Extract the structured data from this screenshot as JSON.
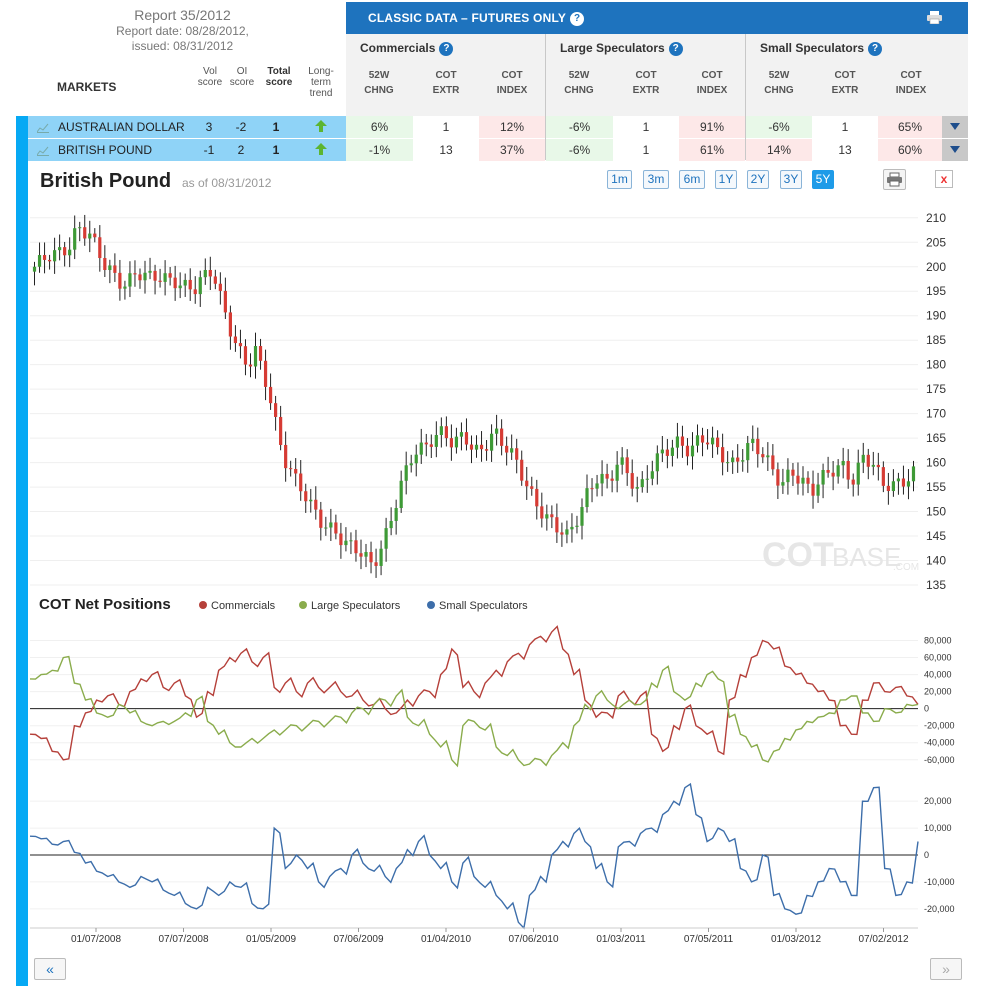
{
  "report": {
    "title": "Report 35/2012",
    "report_date": "Report date: 08/28/2012,",
    "issued": "issued: 08/31/2012"
  },
  "classic_header": {
    "title": "CLASSIC DATA – FUTURES ONLY",
    "print_icon": "print-icon",
    "help_icon": "help-icon"
  },
  "groups": [
    "Commercials",
    "Large Speculators",
    "Small Speculators"
  ],
  "columns": [
    "52W\nCHNG",
    "COT\nEXTR",
    "COT\nINDEX"
  ],
  "left_headers": {
    "markets": "MARKETS",
    "vol": "Vol\nscore",
    "oi": "OI\nscore",
    "total": "Total\nscore",
    "trend": "Long-\nterm\ntrend"
  },
  "rows": [
    {
      "name": "AUSTRALIAN DOLLAR",
      "vol": "3",
      "oi": "-2",
      "total": "1",
      "cells": [
        "6%",
        "1",
        "12%",
        "-6%",
        "1",
        "91%",
        "-6%",
        "1",
        "65%"
      ],
      "cell_colors": [
        "g",
        "w",
        "r",
        "g",
        "w",
        "r",
        "g",
        "w",
        "r"
      ]
    },
    {
      "name": "BRITISH POUND",
      "vol": "-1",
      "oi": "2",
      "total": "1",
      "cells": [
        "-1%",
        "13",
        "37%",
        "-6%",
        "1",
        "61%",
        "14%",
        "13",
        "60%"
      ],
      "cell_colors": [
        "g",
        "w",
        "r",
        "g",
        "w",
        "r",
        "r",
        "w",
        "r"
      ]
    }
  ],
  "chart": {
    "title": "British Pound",
    "as_of": "as of 08/31/2012",
    "ranges": [
      "1m",
      "3m",
      "6m",
      "1Y",
      "2Y",
      "3Y",
      "5Y"
    ],
    "active_range": "5Y",
    "close_label": "x",
    "watermark_cot": "COT",
    "watermark_base": "BASE",
    "watermark_com": ".COM"
  },
  "cot": {
    "title": "COT Net Positions",
    "legend": [
      {
        "label": "Commercials",
        "color": "#b5403a"
      },
      {
        "label": "Large Speculators",
        "color": "#8aac4c"
      },
      {
        "label": "Small Speculators",
        "color": "#3d6eaa"
      }
    ]
  },
  "nav": {
    "prev": "«",
    "next": "»"
  },
  "chart_data": [
    {
      "type": "candlestick",
      "title": "British Pound",
      "ylim": [
        135,
        212
      ],
      "yticks": [
        210,
        205,
        200,
        195,
        190,
        185,
        180,
        175,
        170,
        165,
        160,
        155,
        150,
        145,
        140,
        135
      ],
      "anchors": [
        [
          0,
          200
        ],
        [
          8,
          202
        ],
        [
          14,
          205
        ],
        [
          17,
          209
        ],
        [
          22,
          206
        ],
        [
          27,
          200
        ],
        [
          35,
          197
        ],
        [
          40,
          199
        ],
        [
          45,
          197
        ],
        [
          55,
          198
        ],
        [
          63,
          195
        ],
        [
          70,
          199
        ],
        [
          74,
          193
        ],
        [
          79,
          185
        ],
        [
          84,
          179
        ],
        [
          87,
          182
        ],
        [
          92,
          175
        ],
        [
          98,
          162
        ],
        [
          103,
          156
        ],
        [
          108,
          151
        ],
        [
          113,
          148
        ],
        [
          118,
          147
        ],
        [
          123,
          143
        ],
        [
          128,
          141
        ],
        [
          133,
          139
        ],
        [
          137,
          144
        ],
        [
          141,
          150
        ],
        [
          145,
          156
        ],
        [
          149,
          161
        ],
        [
          153,
          163
        ],
        [
          157,
          166
        ],
        [
          161,
          167
        ],
        [
          165,
          163
        ],
        [
          169,
          165
        ],
        [
          173,
          162
        ],
        [
          177,
          164
        ],
        [
          181,
          167
        ],
        [
          185,
          163
        ],
        [
          189,
          160
        ],
        [
          193,
          156
        ],
        [
          198,
          152
        ],
        [
          202,
          149
        ],
        [
          206,
          146
        ],
        [
          210,
          144
        ],
        [
          214,
          149
        ],
        [
          218,
          155
        ],
        [
          222,
          158
        ],
        [
          226,
          155
        ],
        [
          230,
          160
        ],
        [
          234,
          157
        ],
        [
          238,
          155
        ],
        [
          242,
          159
        ],
        [
          246,
          161
        ],
        [
          250,
          162
        ],
        [
          254,
          164
        ],
        [
          258,
          163
        ],
        [
          262,
          166
        ],
        [
          266,
          164
        ],
        [
          270,
          161
        ],
        [
          274,
          159
        ],
        [
          278,
          162
        ],
        [
          282,
          165
        ],
        [
          286,
          162
        ],
        [
          290,
          158
        ],
        [
          294,
          155
        ],
        [
          298,
          159
        ],
        [
          302,
          157
        ],
        [
          306,
          154
        ],
        [
          310,
          156
        ],
        [
          314,
          158
        ],
        [
          318,
          160
        ],
        [
          322,
          157
        ],
        [
          326,
          161
        ],
        [
          330,
          159
        ],
        [
          334,
          155
        ],
        [
          338,
          156
        ],
        [
          342,
          157
        ],
        [
          346,
          158
        ]
      ]
    },
    {
      "type": "line",
      "title": "COT Net Positions",
      "yticks": [
        80000,
        60000,
        40000,
        20000,
        0,
        -20000,
        -40000,
        -60000
      ],
      "ylim": [
        -72000,
        90000
      ],
      "series": [
        {
          "name": "Commercials",
          "color": "#b5403a",
          "values": [
            -30000,
            -35000,
            -50000,
            -60000,
            -20000,
            -5000,
            10000,
            15000,
            5000,
            20000,
            35000,
            40000,
            25000,
            30000,
            15000,
            -10000,
            20000,
            45000,
            60000,
            65000,
            55000,
            60000,
            25000,
            30000,
            20000,
            30000,
            25000,
            25000,
            20000,
            15000,
            10000,
            5000,
            0,
            -5000,
            10000,
            15000,
            20000,
            40000,
            70000,
            25000,
            20000,
            30000,
            45000,
            55000,
            65000,
            75000,
            85000,
            90000,
            70000,
            40000,
            10000,
            -10000,
            -5000,
            15000,
            10000,
            15000,
            -30000,
            -50000,
            -20000,
            0,
            -20000,
            -30000,
            -50000,
            10000,
            40000,
            60000,
            80000,
            70000,
            50000,
            40000,
            30000,
            20000,
            10000,
            -20000,
            -30000,
            10000,
            30000,
            20000,
            25000,
            15000,
            5000
          ]
        },
        {
          "name": "Large Speculators",
          "color": "#8aac4c",
          "values": [
            35000,
            40000,
            45000,
            60000,
            30000,
            10000,
            -5000,
            -10000,
            5000,
            -5000,
            -15000,
            -20000,
            -15000,
            -15000,
            -5000,
            10000,
            -15000,
            -30000,
            -40000,
            -45000,
            -35000,
            -35000,
            -25000,
            -25000,
            -20000,
            -20000,
            -15000,
            -15000,
            -10000,
            -5000,
            0,
            5000,
            10000,
            15000,
            -10000,
            -20000,
            -30000,
            -45000,
            -60000,
            -20000,
            -15000,
            -25000,
            -45000,
            -55000,
            -60000,
            -65000,
            -60000,
            -55000,
            -40000,
            -20000,
            5000,
            15000,
            10000,
            0,
            10000,
            5000,
            30000,
            45000,
            20000,
            10000,
            30000,
            40000,
            35000,
            -10000,
            -30000,
            -45000,
            -60000,
            -50000,
            -35000,
            -25000,
            -15000,
            -10000,
            -5000,
            10000,
            15000,
            -5000,
            -15000,
            0,
            -5000,
            5000,
            5000
          ]
        },
        {
          "name": "Small Speculators",
          "color": "#3d6eaa",
          "values": [
            7000,
            6000,
            4000,
            5000,
            1000,
            -3000,
            -6000,
            -8000,
            -10000,
            -12000,
            -8000,
            -10000,
            -13000,
            -15000,
            -18000,
            -20000,
            -12000,
            -15000,
            -10000,
            -12000,
            -18000,
            -20000,
            10000,
            -5000,
            0,
            -5000,
            -10000,
            -8000,
            -5000,
            0,
            -3000,
            -6000,
            -8000,
            -5000,
            2000,
            5000,
            0,
            -5000,
            -10000,
            -3000,
            -8000,
            -12000,
            -15000,
            -20000,
            -25000,
            -15000,
            -8000,
            0,
            5000,
            8000,
            5000,
            -5000,
            -10000,
            3000,
            5000,
            8000,
            10000,
            15000,
            20000,
            25000,
            15000,
            5000,
            10000,
            5000,
            -5000,
            -10000,
            0,
            -15000,
            -20000,
            -22000,
            -15000,
            -10000,
            -5000,
            -10000,
            -15000,
            20000,
            25000,
            -5000,
            -15000,
            -10000,
            5000
          ]
        }
      ]
    }
  ],
  "x_labels": [
    "01/07/2008",
    "07/07/2008",
    "01/05/2009",
    "07/06/2009",
    "01/04/2010",
    "07/06/2010",
    "01/03/2011",
    "07/05/2011",
    "01/03/2012",
    "07/02/2012"
  ]
}
